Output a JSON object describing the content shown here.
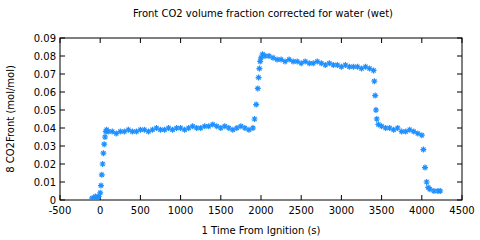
{
  "chart_data": {
    "type": "scatter",
    "title": "Front CO2 volume fraction corrected for water (wet)",
    "x_label": "1 Time From Ignition (s)",
    "y_label": "8 CO2Front (mol/mol)",
    "color": "#1e90ff",
    "marker": "star",
    "grid": false,
    "xlim": [
      -500,
      4500
    ],
    "xticks": [
      -500,
      0,
      500,
      1000,
      1500,
      2000,
      2500,
      3000,
      3500,
      4000,
      4500
    ],
    "ylim": [
      0,
      0.09
    ],
    "yticks": [
      0,
      0.01,
      0.02,
      0.03,
      0.04,
      0.05,
      0.06,
      0.07,
      0.08,
      0.09
    ],
    "x": [
      -100,
      -80,
      -60,
      -40,
      -20,
      0,
      10,
      20,
      30,
      40,
      50,
      60,
      70,
      80,
      100,
      150,
      200,
      250,
      300,
      350,
      400,
      450,
      500,
      550,
      600,
      650,
      700,
      750,
      800,
      850,
      900,
      950,
      1000,
      1050,
      1100,
      1150,
      1200,
      1250,
      1300,
      1350,
      1400,
      1450,
      1500,
      1550,
      1600,
      1650,
      1700,
      1750,
      1800,
      1850,
      1900,
      1920,
      1940,
      1960,
      1970,
      1980,
      1990,
      2000,
      2020,
      2050,
      2100,
      2150,
      2200,
      2250,
      2300,
      2350,
      2400,
      2450,
      2500,
      2550,
      2600,
      2650,
      2700,
      2750,
      2800,
      2850,
      2900,
      2950,
      3000,
      3050,
      3100,
      3150,
      3200,
      3250,
      3300,
      3350,
      3400,
      3410,
      3420,
      3430,
      3440,
      3460,
      3500,
      3550,
      3600,
      3650,
      3700,
      3750,
      3800,
      3850,
      3900,
      3950,
      4000,
      4020,
      4040,
      4060,
      4080,
      4100,
      4150,
      4200,
      4230
    ],
    "values": [
      0.001,
      0.001,
      0.002,
      0.001,
      0.002,
      0.004,
      0.008,
      0.014,
      0.02,
      0.026,
      0.031,
      0.035,
      0.038,
      0.039,
      0.038,
      0.038,
      0.037,
      0.038,
      0.038,
      0.039,
      0.038,
      0.038,
      0.039,
      0.039,
      0.038,
      0.039,
      0.04,
      0.039,
      0.039,
      0.04,
      0.039,
      0.04,
      0.04,
      0.039,
      0.04,
      0.041,
      0.04,
      0.04,
      0.041,
      0.041,
      0.042,
      0.041,
      0.04,
      0.041,
      0.04,
      0.039,
      0.04,
      0.041,
      0.04,
      0.039,
      0.04,
      0.045,
      0.053,
      0.062,
      0.068,
      0.073,
      0.077,
      0.079,
      0.081,
      0.08,
      0.08,
      0.079,
      0.078,
      0.078,
      0.077,
      0.078,
      0.077,
      0.077,
      0.076,
      0.077,
      0.076,
      0.076,
      0.077,
      0.076,
      0.075,
      0.076,
      0.075,
      0.075,
      0.074,
      0.075,
      0.074,
      0.074,
      0.074,
      0.073,
      0.074,
      0.073,
      0.072,
      0.066,
      0.058,
      0.05,
      0.045,
      0.042,
      0.041,
      0.04,
      0.04,
      0.039,
      0.04,
      0.038,
      0.038,
      0.039,
      0.038,
      0.037,
      0.036,
      0.028,
      0.018,
      0.01,
      0.007,
      0.006,
      0.005,
      0.005,
      0.005
    ]
  }
}
